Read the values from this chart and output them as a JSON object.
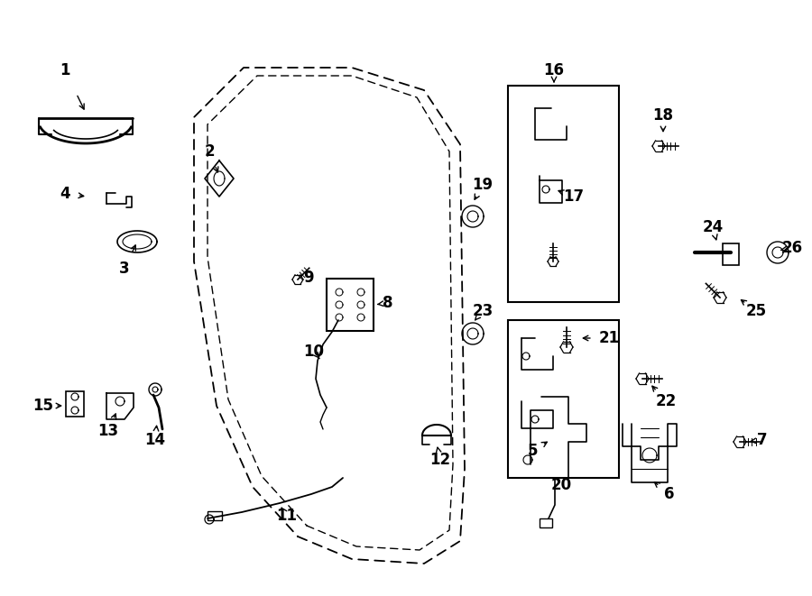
{
  "bg_color": "#ffffff",
  "line_color": "#000000",
  "fig_width": 9.0,
  "fig_height": 6.61,
  "dpi": 100,
  "door_outer_x": [
    330,
    390,
    470,
    510,
    515,
    510,
    470,
    390,
    270,
    215,
    215,
    240,
    280,
    330
  ],
  "door_outer_y": [
    595,
    620,
    625,
    600,
    520,
    160,
    100,
    75,
    75,
    130,
    290,
    450,
    540,
    595
  ],
  "door_inner_x": [
    340,
    395,
    465,
    498,
    502,
    498,
    462,
    390,
    285,
    230,
    230,
    253,
    290,
    340
  ],
  "door_inner_y": [
    583,
    606,
    610,
    588,
    515,
    168,
    108,
    84,
    84,
    138,
    285,
    443,
    528,
    583
  ]
}
